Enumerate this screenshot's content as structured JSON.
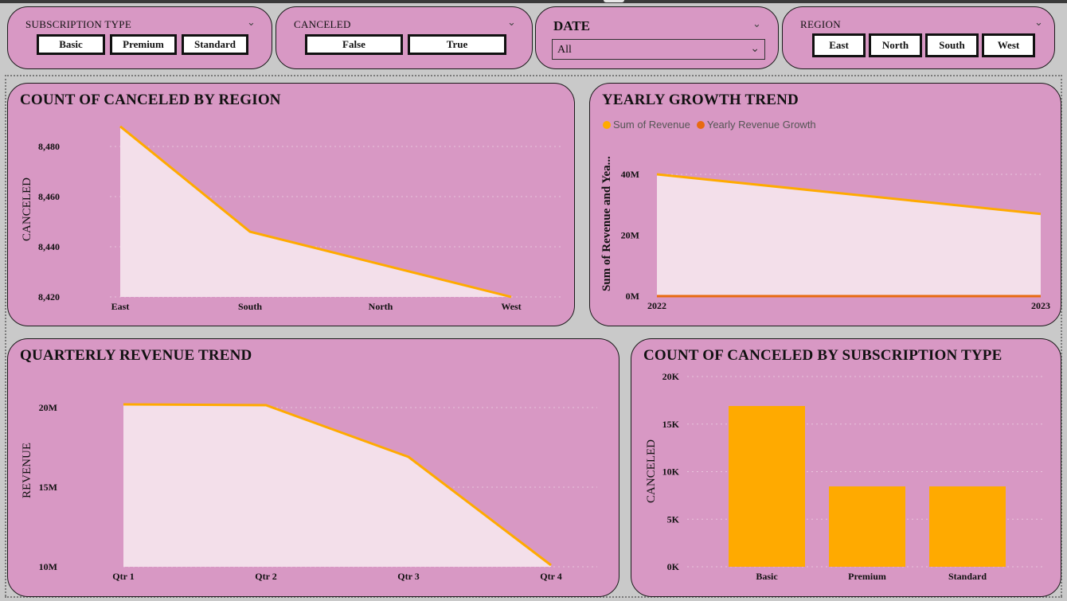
{
  "colors": {
    "card_bg": "#d898c4",
    "area_fill": "#f3dfea",
    "line_orange": "#ffaa00",
    "growth_orange": "#e86a10",
    "bar_fill": "#ffaa00"
  },
  "slicers": {
    "subscription": {
      "title": "SUBSCRIPTION TYPE",
      "options": [
        "Basic",
        "Premium",
        "Standard"
      ]
    },
    "canceled": {
      "title": "CANCELED",
      "options": [
        "False",
        "True"
      ]
    },
    "date": {
      "title": "DATE",
      "selected": "All"
    },
    "region": {
      "title": "REGION",
      "options": [
        "East",
        "North",
        "South",
        "West"
      ]
    }
  },
  "chart_data": [
    {
      "type": "area",
      "title": "COUNT OF CANCELED BY REGION",
      "xlabel": "",
      "ylabel": "CANCELED",
      "categories": [
        "East",
        "South",
        "North",
        "West"
      ],
      "values": [
        8488,
        8446,
        8433,
        8420
      ],
      "yticks": [
        "8,420",
        "8,440",
        "8,460",
        "8,480"
      ],
      "yrange": [
        8420,
        8490
      ],
      "grid": true
    },
    {
      "type": "area",
      "title": "YEARLY GROWTH TREND",
      "ylabel": "Sum of Revenue and Yea...",
      "categories": [
        "2022",
        "2023"
      ],
      "series": [
        {
          "name": "Sum of Revenue",
          "values": [
            40000000,
            27000000
          ]
        },
        {
          "name": "Yearly Revenue Growth",
          "values": [
            0,
            0
          ]
        }
      ],
      "yticks": [
        "0M",
        "20M",
        "40M"
      ],
      "yrange": [
        0,
        45000000
      ],
      "legend": "top-left",
      "grid": true
    },
    {
      "type": "area",
      "title": "QUARTERLY REVENUE TREND",
      "ylabel": "REVENUE",
      "categories": [
        "Qtr 1",
        "Qtr 2",
        "Qtr 3",
        "Qtr 4"
      ],
      "values": [
        20200000,
        20150000,
        16900000,
        10100000
      ],
      "yticks": [
        "10M",
        "15M",
        "20M"
      ],
      "yrange": [
        10000000,
        21000000
      ],
      "grid": true
    },
    {
      "type": "bar",
      "title": "COUNT OF CANCELED BY SUBSCRIPTION TYPE",
      "ylabel": "CANCELED",
      "categories": [
        "Basic",
        "Premium",
        "Standard"
      ],
      "values": [
        16900,
        8450,
        8450
      ],
      "yticks": [
        "0K",
        "5K",
        "10K",
        "15K",
        "20K"
      ],
      "yrange": [
        0,
        20000
      ],
      "grid": true
    }
  ]
}
